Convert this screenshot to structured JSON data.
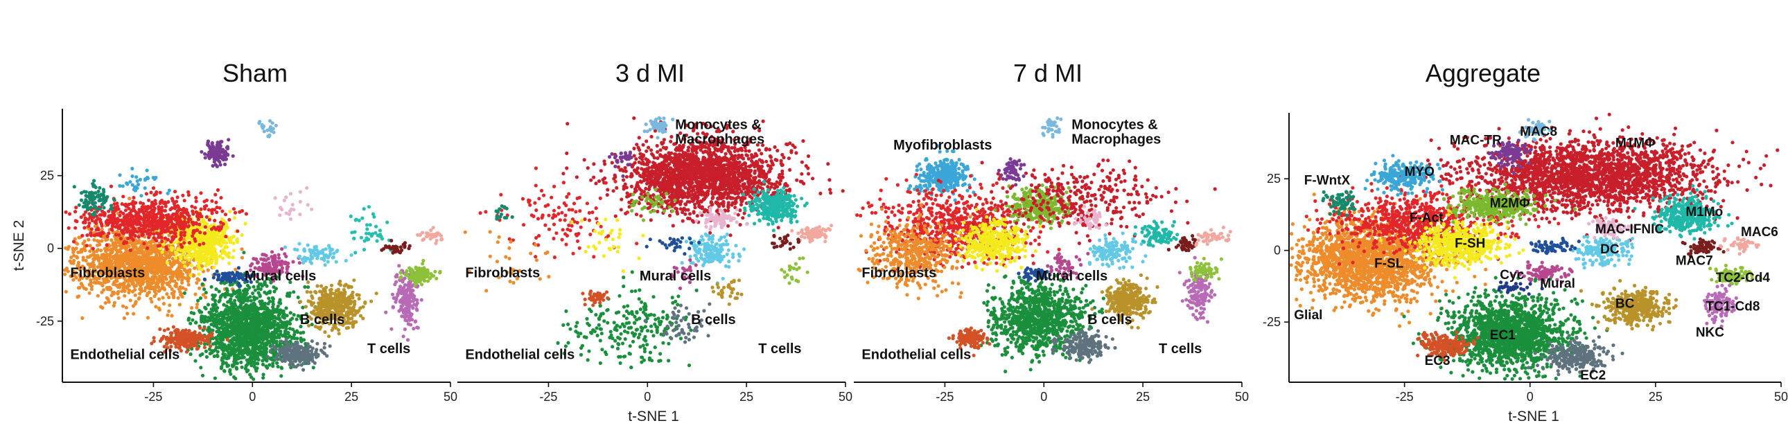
{
  "chart_data": [
    {
      "type": "scatter",
      "title": "Sham",
      "xlabel": "",
      "ylabel": "t-SNE 2",
      "xlim": [
        -48,
        50
      ],
      "ylim": [
        -46,
        48
      ],
      "xticks": [
        -25,
        0,
        25,
        50
      ],
      "yticks": [
        25,
        0,
        -25
      ],
      "labels": [
        {
          "text": "Fibroblasts",
          "x": -46,
          "y": -10
        },
        {
          "text": "Mural cells",
          "x": -2,
          "y": -11
        },
        {
          "text": "B cells",
          "x": 12,
          "y": -26
        },
        {
          "text": "T cells",
          "x": 29,
          "y": -36
        },
        {
          "text": "Endothelial cells",
          "x": -46,
          "y": -38
        }
      ],
      "clusters": [
        {
          "color": "#ee8c2b",
          "x": -29,
          "y": -5,
          "sx": 8,
          "sy": 6,
          "n": 1400
        },
        {
          "color": "#f4ea1c",
          "x": -13,
          "y": 2,
          "sx": 4,
          "sy": 4,
          "n": 500
        },
        {
          "color": "#e2262a",
          "x": -26,
          "y": 10,
          "sx": 9,
          "sy": 4,
          "n": 700
        },
        {
          "color": "#1a8f3c",
          "x": -1,
          "y": -27,
          "sx": 6,
          "sy": 7,
          "n": 1500
        },
        {
          "color": "#d45126",
          "x": -17,
          "y": -31,
          "sx": 3,
          "sy": 1.5,
          "n": 220
        },
        {
          "color": "#5e737e",
          "x": 11,
          "y": -36,
          "sx": 3,
          "sy": 2,
          "n": 220
        },
        {
          "color": "#ba922a",
          "x": 21,
          "y": -20,
          "sx": 3,
          "sy": 3.5,
          "n": 380
        },
        {
          "color": "#b86ab6",
          "x": 39,
          "y": -17,
          "sx": 1.5,
          "sy": 5,
          "n": 200
        },
        {
          "color": "#8ec13a",
          "x": 42,
          "y": -9,
          "sx": 2,
          "sy": 1.5,
          "n": 120
        },
        {
          "color": "#7a3b95",
          "x": -9,
          "y": 33,
          "sx": 1.5,
          "sy": 2,
          "n": 130
        },
        {
          "color": "#1f4f9c",
          "x": -5,
          "y": -10,
          "sx": 2.5,
          "sy": 1,
          "n": 80
        },
        {
          "color": "#b8478f",
          "x": 5,
          "y": -6,
          "sx": 2.5,
          "sy": 2,
          "n": 120
        },
        {
          "color": "#62c9e6",
          "x": 16,
          "y": -2,
          "sx": 3,
          "sy": 2,
          "n": 70
        },
        {
          "color": "#25bfae",
          "x": 30,
          "y": 6,
          "sx": 3,
          "sy": 3,
          "n": 40
        },
        {
          "color": "#148a6c",
          "x": -40,
          "y": 17,
          "sx": 2,
          "sy": 2.5,
          "n": 80
        },
        {
          "color": "#7b1d1d",
          "x": 36,
          "y": 0,
          "sx": 1.5,
          "sy": 1,
          "n": 40
        },
        {
          "color": "#f2a79f",
          "x": 45,
          "y": 4,
          "sx": 1.5,
          "sy": 1,
          "n": 30
        },
        {
          "color": "#7bb8de",
          "x": 4,
          "y": 41,
          "sx": 1.5,
          "sy": 1.5,
          "n": 20
        },
        {
          "color": "#3ba6d8",
          "x": -28,
          "y": 23,
          "sx": 4,
          "sy": 2,
          "n": 30
        },
        {
          "color": "#e9b4cf",
          "x": 11,
          "y": 14,
          "sx": 3,
          "sy": 3,
          "n": 20
        }
      ]
    },
    {
      "type": "scatter",
      "title": "3 d MI",
      "xlabel": "",
      "ylabel": "",
      "xlim": [
        -48,
        50
      ],
      "ylim": [
        -46,
        48
      ],
      "xticks": [
        -25,
        0,
        25,
        50
      ],
      "yticks": [],
      "labels": [
        {
          "text": "Monocytes &",
          "x": 7,
          "y": 41
        },
        {
          "text": "Macrophages",
          "x": 7,
          "y": 36
        },
        {
          "text": "Fibroblasts",
          "x": -46,
          "y": -10
        },
        {
          "text": "Mural cells",
          "x": -2,
          "y": -11
        },
        {
          "text": "B cells",
          "x": 11,
          "y": -26
        },
        {
          "text": "T cells",
          "x": 28,
          "y": -36
        },
        {
          "text": "Endothelial cells",
          "x": -46,
          "y": -38
        }
      ],
      "clusters": [
        {
          "color": "#c81f2b",
          "x": 14,
          "y": 25,
          "sx": 10,
          "sy": 6,
          "n": 1900
        },
        {
          "color": "#1fb8a9",
          "x": 32,
          "y": 14,
          "sx": 3,
          "sy": 3,
          "n": 280
        },
        {
          "color": "#f2a79f",
          "x": 42,
          "y": 5,
          "sx": 2,
          "sy": 1.5,
          "n": 90
        },
        {
          "color": "#62c9e6",
          "x": 16,
          "y": -1,
          "sx": 3,
          "sy": 2.5,
          "n": 160
        },
        {
          "color": "#e9b4cf",
          "x": 18,
          "y": 10,
          "sx": 2,
          "sy": 1.5,
          "n": 80
        },
        {
          "color": "#7bb8de",
          "x": 3,
          "y": 42,
          "sx": 1.5,
          "sy": 1.5,
          "n": 50
        },
        {
          "color": "#7a3b95",
          "x": -6,
          "y": 31,
          "sx": 1.5,
          "sy": 1.5,
          "n": 30
        },
        {
          "color": "#e2262a",
          "x": -22,
          "y": 10,
          "sx": 8,
          "sy": 6,
          "n": 110
        },
        {
          "color": "#ee8c2b",
          "x": -36,
          "y": -4,
          "sx": 6,
          "sy": 5,
          "n": 30
        },
        {
          "color": "#f4ea1c",
          "x": -10,
          "y": 3,
          "sx": 4,
          "sy": 4,
          "n": 30
        },
        {
          "color": "#1a8f3c",
          "x": -4,
          "y": -27,
          "sx": 8,
          "sy": 7,
          "n": 220
        },
        {
          "color": "#d45126",
          "x": -13,
          "y": -17,
          "sx": 1.5,
          "sy": 1.2,
          "n": 40
        },
        {
          "color": "#5e737e",
          "x": 9,
          "y": -27,
          "sx": 3,
          "sy": 3,
          "n": 50
        },
        {
          "color": "#ba922a",
          "x": 20,
          "y": -15,
          "sx": 2,
          "sy": 2,
          "n": 30
        },
        {
          "color": "#8ec13a",
          "x": 37,
          "y": -8,
          "sx": 1.5,
          "sy": 2,
          "n": 20
        },
        {
          "color": "#1f4f9c",
          "x": 7,
          "y": 2,
          "sx": 2.5,
          "sy": 1.5,
          "n": 30
        },
        {
          "color": "#b8478f",
          "x": 9,
          "y": -8,
          "sx": 2,
          "sy": 2,
          "n": 20
        },
        {
          "color": "#7bb92e",
          "x": 1,
          "y": 16,
          "sx": 3,
          "sy": 2,
          "n": 40
        },
        {
          "color": "#7b1d1d",
          "x": 35,
          "y": 2,
          "sx": 1.5,
          "sy": 1.5,
          "n": 25
        },
        {
          "color": "#148a6c",
          "x": -37,
          "y": 12,
          "sx": 1.5,
          "sy": 1.5,
          "n": 15
        }
      ]
    },
    {
      "type": "scatter",
      "title": "7 d MI",
      "xlabel": "t-SNE 1",
      "ylabel": "",
      "xlim": [
        -48,
        50
      ],
      "ylim": [
        -46,
        48
      ],
      "xticks": [
        -25,
        0,
        25,
        50
      ],
      "yticks": [],
      "labels": [
        {
          "text": "Monocytes &",
          "x": 7,
          "y": 41
        },
        {
          "text": "Macrophages",
          "x": 7,
          "y": 36
        },
        {
          "text": "Myofibroblasts",
          "x": -38,
          "y": 34
        },
        {
          "text": "Fibroblasts",
          "x": -46,
          "y": -10
        },
        {
          "text": "Mural cells",
          "x": -2,
          "y": -11
        },
        {
          "text": "B cells",
          "x": 11,
          "y": -26
        },
        {
          "text": "T cells",
          "x": 29,
          "y": -36
        },
        {
          "text": "Endothelial cells",
          "x": -46,
          "y": -38
        }
      ],
      "clusters": [
        {
          "color": "#3ba6d8",
          "x": -25,
          "y": 25,
          "sx": 3,
          "sy": 3,
          "n": 320
        },
        {
          "color": "#e2262a",
          "x": -22,
          "y": 8,
          "sx": 10,
          "sy": 6,
          "n": 620
        },
        {
          "color": "#ee8c2b",
          "x": -33,
          "y": -2,
          "sx": 6,
          "sy": 5,
          "n": 400
        },
        {
          "color": "#f4ea1c",
          "x": -13,
          "y": 2,
          "sx": 4,
          "sy": 3.5,
          "n": 350
        },
        {
          "color": "#7bb92e",
          "x": -1,
          "y": 15,
          "sx": 3.5,
          "sy": 3,
          "n": 320
        },
        {
          "color": "#c81f2b",
          "x": 10,
          "y": 17,
          "sx": 10,
          "sy": 6,
          "n": 300
        },
        {
          "color": "#1fb8a9",
          "x": 29,
          "y": 5,
          "sx": 2.5,
          "sy": 2,
          "n": 90
        },
        {
          "color": "#62c9e6",
          "x": 17,
          "y": -1,
          "sx": 3,
          "sy": 2.5,
          "n": 130
        },
        {
          "color": "#1a8f3c",
          "x": -1,
          "y": -24,
          "sx": 6,
          "sy": 6,
          "n": 900
        },
        {
          "color": "#5e737e",
          "x": 10,
          "y": -33,
          "sx": 3,
          "sy": 2.5,
          "n": 180
        },
        {
          "color": "#ba922a",
          "x": 21,
          "y": -18,
          "sx": 2.5,
          "sy": 3,
          "n": 300
        },
        {
          "color": "#b86ab6",
          "x": 39,
          "y": -15,
          "sx": 1.5,
          "sy": 4,
          "n": 130
        },
        {
          "color": "#8ec13a",
          "x": 40,
          "y": -8,
          "sx": 2,
          "sy": 1.5,
          "n": 60
        },
        {
          "color": "#d45126",
          "x": -19,
          "y": -31,
          "sx": 2,
          "sy": 1.5,
          "n": 120
        },
        {
          "color": "#7a3b95",
          "x": -8,
          "y": 27,
          "sx": 1.5,
          "sy": 2,
          "n": 60
        },
        {
          "color": "#1f4f9c",
          "x": -2,
          "y": -9,
          "sx": 2,
          "sy": 1,
          "n": 50
        },
        {
          "color": "#b8478f",
          "x": 5,
          "y": -6,
          "sx": 2,
          "sy": 2,
          "n": 50
        },
        {
          "color": "#7b1d1d",
          "x": 36,
          "y": 1,
          "sx": 1.5,
          "sy": 1.2,
          "n": 40
        },
        {
          "color": "#f2a79f",
          "x": 42,
          "y": 4,
          "sx": 2,
          "sy": 1.2,
          "n": 40
        },
        {
          "color": "#7bb8de",
          "x": 2,
          "y": 42,
          "sx": 1.5,
          "sy": 1.5,
          "n": 30
        },
        {
          "color": "#e9b4cf",
          "x": 12,
          "y": 10,
          "sx": 2,
          "sy": 2,
          "n": 40
        }
      ]
    },
    {
      "type": "scatter",
      "title": "Aggregate",
      "xlabel": "t-SNE 1",
      "ylabel": "",
      "xlim": [
        -48,
        50
      ],
      "ylim": [
        -46,
        48
      ],
      "xticks": [
        -25,
        0,
        25,
        50
      ],
      "yticks": [
        25,
        0,
        -25
      ],
      "labels": [
        {
          "text": "MAC8",
          "x": -2,
          "y": 40
        },
        {
          "text": "MAC-TR",
          "x": -16,
          "y": 37
        },
        {
          "text": "M1MΦ",
          "x": 17,
          "y": 36
        },
        {
          "text": "MYO",
          "x": -25,
          "y": 26
        },
        {
          "text": "F-WntX",
          "x": -45,
          "y": 23
        },
        {
          "text": "M2MΦ",
          "x": -8,
          "y": 15
        },
        {
          "text": "M1Mo",
          "x": 31,
          "y": 12
        },
        {
          "text": "F-Act",
          "x": -24,
          "y": 10
        },
        {
          "text": "MAC-IFNIC",
          "x": 13,
          "y": 6
        },
        {
          "text": "MAC6",
          "x": 42,
          "y": 5
        },
        {
          "text": "F-SH",
          "x": -15,
          "y": 1
        },
        {
          "text": "DC",
          "x": 14,
          "y": -1
        },
        {
          "text": "MAC7",
          "x": 29,
          "y": -5
        },
        {
          "text": "F-SL",
          "x": -31,
          "y": -6
        },
        {
          "text": "Cyc",
          "x": -6,
          "y": -10
        },
        {
          "text": "Mural",
          "x": 2,
          "y": -13
        },
        {
          "text": "TC2-Cd4",
          "x": 37,
          "y": -11
        },
        {
          "text": "Glial",
          "x": -47,
          "y": -24
        },
        {
          "text": "BC",
          "x": 17,
          "y": -20
        },
        {
          "text": "TC1-Cd8",
          "x": 35,
          "y": -21
        },
        {
          "text": "NKC",
          "x": 33,
          "y": -30
        },
        {
          "text": "EC1",
          "x": -8,
          "y": -31
        },
        {
          "text": "EC3",
          "x": -21,
          "y": -40
        },
        {
          "text": "EC2",
          "x": 10,
          "y": -45
        }
      ],
      "clusters": [
        {
          "color": "#c81f2b",
          "x": 12,
          "y": 26,
          "sx": 12,
          "sy": 6,
          "n": 2100
        },
        {
          "color": "#1fb8a9",
          "x": 31,
          "y": 12,
          "sx": 3,
          "sy": 3,
          "n": 350
        },
        {
          "color": "#ee8c2b",
          "x": -32,
          "y": -3,
          "sx": 7,
          "sy": 7,
          "n": 1700
        },
        {
          "color": "#e2262a",
          "x": -23,
          "y": 10,
          "sx": 8,
          "sy": 5,
          "n": 700
        },
        {
          "color": "#f4ea1c",
          "x": -14,
          "y": 2,
          "sx": 4,
          "sy": 3.5,
          "n": 500
        },
        {
          "color": "#3ba6d8",
          "x": -25,
          "y": 26,
          "sx": 3,
          "sy": 2.5,
          "n": 250
        },
        {
          "color": "#7bb92e",
          "x": -6,
          "y": 16,
          "sx": 4,
          "sy": 2.5,
          "n": 350
        },
        {
          "color": "#1a8f3c",
          "x": -4,
          "y": -29,
          "sx": 6,
          "sy": 6,
          "n": 1600
        },
        {
          "color": "#5e737e",
          "x": 9,
          "y": -37,
          "sx": 3,
          "sy": 2.5,
          "n": 250
        },
        {
          "color": "#d45126",
          "x": -17,
          "y": -33,
          "sx": 2.5,
          "sy": 2,
          "n": 200
        },
        {
          "color": "#ba922a",
          "x": 21,
          "y": -20,
          "sx": 3,
          "sy": 3,
          "n": 400
        },
        {
          "color": "#b86ab6",
          "x": 38,
          "y": -19,
          "sx": 1.5,
          "sy": 3,
          "n": 120
        },
        {
          "color": "#8ec13a",
          "x": 40,
          "y": -9,
          "sx": 2,
          "sy": 1.5,
          "n": 100
        },
        {
          "color": "#7a3b95",
          "x": -4,
          "y": 34,
          "sx": 1.5,
          "sy": 2,
          "n": 130
        },
        {
          "color": "#62c9e6",
          "x": 15,
          "y": 0,
          "sx": 3,
          "sy": 2.5,
          "n": 160
        },
        {
          "color": "#e9b4cf",
          "x": 16,
          "y": 8,
          "sx": 2,
          "sy": 1.5,
          "n": 80
        },
        {
          "color": "#1f4f9c",
          "x": 4,
          "y": 1,
          "sx": 2,
          "sy": 1.2,
          "n": 60
        },
        {
          "color": "#b8478f",
          "x": 3,
          "y": -8,
          "sx": 2.5,
          "sy": 1.5,
          "n": 90
        },
        {
          "color": "#7b1d1d",
          "x": 34,
          "y": 1,
          "sx": 1.5,
          "sy": 1.2,
          "n": 60
        },
        {
          "color": "#f2a79f",
          "x": 42,
          "y": 2,
          "sx": 1.5,
          "sy": 1.2,
          "n": 40
        },
        {
          "color": "#7bb8de",
          "x": 1,
          "y": 42,
          "sx": 1.5,
          "sy": 1.5,
          "n": 40
        },
        {
          "color": "#148a6c",
          "x": -38,
          "y": 17,
          "sx": 1.5,
          "sy": 2,
          "n": 60
        },
        {
          "color": "#1f3a8a",
          "x": -3,
          "y": -13,
          "sx": 1.5,
          "sy": 1,
          "n": 30
        }
      ]
    }
  ]
}
